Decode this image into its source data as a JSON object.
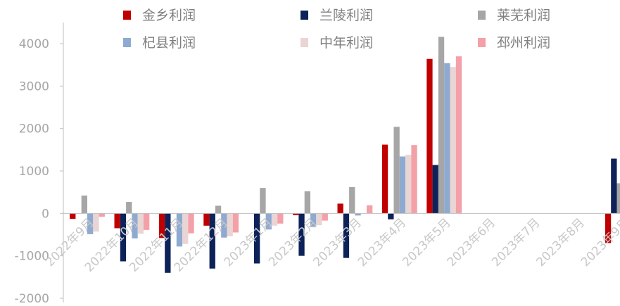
{
  "chart_data": {
    "type": "bar",
    "title": "",
    "xlabel": "",
    "ylabel": "",
    "ylim": [
      -2000,
      4500
    ],
    "yticks": [
      -2000,
      -1000,
      0,
      1000,
      2000,
      3000,
      4000
    ],
    "grid": false,
    "legend_position": "top",
    "categories": [
      "2022年9月",
      "2022年10月",
      "2022年11月",
      "2022年12月",
      "2023年1月",
      "2023年2月",
      "2023年3月",
      "2023年4月",
      "2023年5月",
      "2023年6月",
      "2023年7月",
      "2023年8月",
      "2023年9月"
    ],
    "series": [
      {
        "name": "金乡利润",
        "color": "#c00000",
        "values": [
          -130,
          -350,
          -580,
          -290,
          0,
          -40,
          230,
          1620,
          3640,
          null,
          null,
          null,
          -700
        ]
      },
      {
        "name": "兰陵利润",
        "color": "#0d2258",
        "values": [
          0,
          -1130,
          -1400,
          -1300,
          -1180,
          -1000,
          -1050,
          -140,
          1140,
          null,
          null,
          null,
          1290
        ]
      },
      {
        "name": "莱芜利润",
        "color": "#a6a6a6",
        "values": [
          420,
          270,
          0,
          180,
          600,
          520,
          620,
          2040,
          4160,
          null,
          null,
          null,
          710
        ]
      },
      {
        "name": "杞县利润",
        "color": "#8eaad0",
        "values": [
          -490,
          -590,
          -780,
          -570,
          -380,
          -320,
          -50,
          1340,
          3540,
          null,
          null,
          null,
          -850
        ]
      },
      {
        "name": "中年利润",
        "color": "#ead5d5",
        "values": [
          -430,
          -480,
          -720,
          -540,
          -290,
          -280,
          0,
          1380,
          3450,
          null,
          null,
          null,
          -900
        ]
      },
      {
        "name": "邳州利润",
        "color": "#f4a0a8",
        "values": [
          -80,
          -390,
          -470,
          -450,
          -240,
          -170,
          190,
          1610,
          3700,
          null,
          null,
          null,
          null
        ]
      }
    ]
  }
}
